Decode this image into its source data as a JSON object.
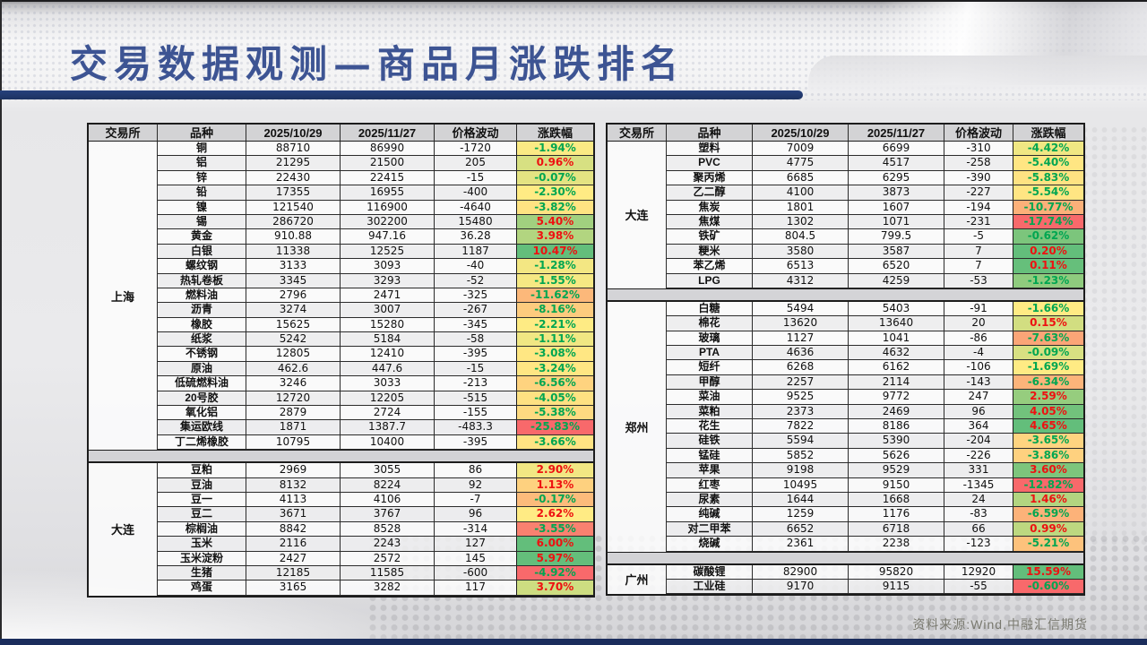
{
  "title": "交易数据观测—商品月涨跌排名",
  "footer": {
    "source": "资料来源:Wind,中融汇信期货"
  },
  "columns": [
    "交易所",
    "品种",
    "2025/10/29",
    "2025/11/27",
    "价格波动",
    "涨跌幅"
  ],
  "colors": {
    "title_text": "#3d5493",
    "accent_bar": "#1e3a72",
    "bottom_bar": "#1b2d5c",
    "header_row_bg": "#d3d3d5",
    "scale_min": "#F8696B",
    "scale_mid": "#FFEB84",
    "scale_max": "#63BE7B",
    "pct_up_text": "#ee1111",
    "pct_down_text": "#00a651"
  },
  "tables": [
    {
      "name": "left",
      "blocks": [
        {
          "exchange": "上海",
          "rows": [
            [
              "铜",
              "88710",
              "86990",
              "-1720",
              "-1.94%"
            ],
            [
              "铝",
              "21295",
              "21500",
              "205",
              "0.96%"
            ],
            [
              "锌",
              "22430",
              "22415",
              "-15",
              "-0.07%"
            ],
            [
              "铅",
              "17355",
              "16955",
              "-400",
              "-2.30%"
            ],
            [
              "镍",
              "121540",
              "116900",
              "-4640",
              "-3.82%"
            ],
            [
              "锡",
              "286720",
              "302200",
              "15480",
              "5.40%"
            ],
            [
              "黄金",
              "910.88",
              "947.16",
              "36.28",
              "3.98%"
            ],
            [
              "白银",
              "11338",
              "12525",
              "1187",
              "10.47%"
            ],
            [
              "螺纹钢",
              "3133",
              "3093",
              "-40",
              "-1.28%"
            ],
            [
              "热轧卷板",
              "3345",
              "3293",
              "-52",
              "-1.55%"
            ],
            [
              "燃料油",
              "2796",
              "2471",
              "-325",
              "-11.62%"
            ],
            [
              "沥青",
              "3274",
              "3007",
              "-267",
              "-8.16%"
            ],
            [
              "橡胶",
              "15625",
              "15280",
              "-345",
              "-2.21%"
            ],
            [
              "纸浆",
              "5242",
              "5184",
              "-58",
              "-1.11%"
            ],
            [
              "不锈钢",
              "12805",
              "12410",
              "-395",
              "-3.08%"
            ],
            [
              "原油",
              "462.6",
              "447.6",
              "-15",
              "-3.24%"
            ],
            [
              "低硫燃料油",
              "3246",
              "3033",
              "-213",
              "-6.56%"
            ],
            [
              "20号胶",
              "12720",
              "12205",
              "-515",
              "-4.05%"
            ],
            [
              "氧化铝",
              "2879",
              "2724",
              "-155",
              "-5.38%"
            ],
            [
              "集运欧线",
              "1871",
              "1387.7",
              "-483.3",
              "-25.83%"
            ],
            [
              "丁二烯橡胶",
              "10795",
              "10400",
              "-395",
              "-3.66%"
            ]
          ]
        },
        {
          "exchange": "大连",
          "rows": [
            [
              "豆粕",
              "2969",
              "3055",
              "86",
              "2.90%"
            ],
            [
              "豆油",
              "8132",
              "8224",
              "92",
              "1.13%"
            ],
            [
              "豆一",
              "4113",
              "4106",
              "-7",
              "-0.17%"
            ],
            [
              "豆二",
              "3671",
              "3767",
              "96",
              "2.62%"
            ],
            [
              "棕榈油",
              "8842",
              "8528",
              "-314",
              "-3.55%"
            ],
            [
              "玉米",
              "2116",
              "2243",
              "127",
              "6.00%"
            ],
            [
              "玉米淀粉",
              "2427",
              "2572",
              "145",
              "5.97%"
            ],
            [
              "生猪",
              "12185",
              "11585",
              "-600",
              "-4.92%"
            ],
            [
              "鸡蛋",
              "3165",
              "3282",
              "117",
              "3.70%"
            ]
          ]
        }
      ]
    },
    {
      "name": "right",
      "blocks": [
        {
          "exchange": "大连",
          "rows": [
            [
              "塑料",
              "7009",
              "6699",
              "-310",
              "-4.42%"
            ],
            [
              "PVC",
              "4775",
              "4517",
              "-258",
              "-5.40%"
            ],
            [
              "聚丙烯",
              "6685",
              "6295",
              "-390",
              "-5.83%"
            ],
            [
              "乙二醇",
              "4100",
              "3873",
              "-227",
              "-5.54%"
            ],
            [
              "焦炭",
              "1801",
              "1607",
              "-194",
              "-10.77%"
            ],
            [
              "焦煤",
              "1302",
              "1071",
              "-231",
              "-17.74%"
            ],
            [
              "铁矿",
              "804.5",
              "799.5",
              "-5",
              "-0.62%"
            ],
            [
              "粳米",
              "3580",
              "3587",
              "7",
              "0.20%"
            ],
            [
              "苯乙烯",
              "6513",
              "6520",
              "7",
              "0.11%"
            ],
            [
              "LPG",
              "4312",
              "4259",
              "-53",
              "-1.23%"
            ]
          ]
        },
        {
          "exchange": "郑州",
          "rows": [
            [
              "白糖",
              "5494",
              "5403",
              "-91",
              "-1.66%"
            ],
            [
              "棉花",
              "13620",
              "13640",
              "20",
              "0.15%"
            ],
            [
              "玻璃",
              "1127",
              "1041",
              "-86",
              "-7.63%"
            ],
            [
              "PTA",
              "4636",
              "4632",
              "-4",
              "-0.09%"
            ],
            [
              "短纤",
              "6268",
              "6162",
              "-106",
              "-1.69%"
            ],
            [
              "甲醇",
              "2257",
              "2114",
              "-143",
              "-6.34%"
            ],
            [
              "菜油",
              "9525",
              "9772",
              "247",
              "2.59%"
            ],
            [
              "菜粕",
              "2373",
              "2469",
              "96",
              "4.05%"
            ],
            [
              "花生",
              "7822",
              "8186",
              "364",
              "4.65%"
            ],
            [
              "硅铁",
              "5594",
              "5390",
              "-204",
              "-3.65%"
            ],
            [
              "锰硅",
              "5852",
              "5626",
              "-226",
              "-3.86%"
            ],
            [
              "苹果",
              "9198",
              "9529",
              "331",
              "3.60%"
            ],
            [
              "红枣",
              "10495",
              "9150",
              "-1345",
              "-12.82%"
            ],
            [
              "尿素",
              "1644",
              "1668",
              "24",
              "1.46%"
            ],
            [
              "纯碱",
              "1259",
              "1176",
              "-83",
              "-6.59%"
            ],
            [
              "对二甲苯",
              "6652",
              "6718",
              "66",
              "0.99%"
            ],
            [
              "烧碱",
              "2361",
              "2238",
              "-123",
              "-5.21%"
            ]
          ]
        },
        {
          "exchange": "广州",
          "rows": [
            [
              "碳酸锂",
              "82900",
              "95820",
              "12920",
              "15.59%"
            ],
            [
              "工业硅",
              "9170",
              "9115",
              "-55",
              "-0.60%"
            ]
          ]
        }
      ]
    }
  ]
}
